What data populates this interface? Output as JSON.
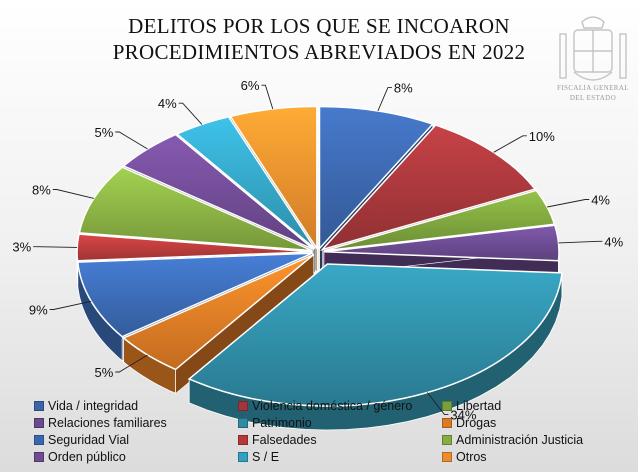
{
  "chart_data": {
    "type": "pie",
    "title": "DELITOS POR LOS QUE SE INCOARON",
    "subtitle": "PROCEDIMIENTOS ABREVIADOS EN 2022",
    "logo_text": [
      "FISCALIA GENERAL",
      "DEL ESTADO"
    ],
    "legend_placement": "bottom",
    "slices": [
      {
        "label": "Vida / integridad",
        "value": 8,
        "display": "8%",
        "color": "#3a64a8"
      },
      {
        "label": "Violencia doméstica / género",
        "value": 10,
        "display": "10%",
        "color": "#a3363a"
      },
      {
        "label": "Libertad",
        "value": 4,
        "display": "4%",
        "color": "#7aa03c"
      },
      {
        "label": "Relaciones familiares",
        "value": 4,
        "display": "4%",
        "color": "#6a4a8e"
      },
      {
        "label": "Patrimonio",
        "value": 34,
        "display": "34%",
        "color": "#2f8aa2"
      },
      {
        "label": "Drogas",
        "value": 5,
        "display": "5%",
        "color": "#dc7a24"
      },
      {
        "label": "Seguridad Vial",
        "value": 9,
        "display": "9%",
        "color": "#3a68b0"
      },
      {
        "label": "Falsedades",
        "value": 3,
        "display": "3%",
        "color": "#b43a3a"
      },
      {
        "label": "Administración Justicia",
        "value": 8,
        "display": "8%",
        "color": "#86ac42"
      },
      {
        "label": "Orden público",
        "value": 5,
        "display": "5%",
        "color": "#6e4a92"
      },
      {
        "label": "S / E",
        "value": 4,
        "display": "4%",
        "color": "#33a0c0"
      },
      {
        "label": "Otros",
        "value": 6,
        "display": "6%",
        "color": "#ee8c2c"
      }
    ]
  }
}
